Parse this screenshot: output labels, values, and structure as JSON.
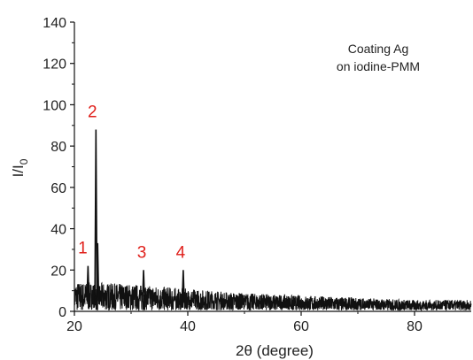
{
  "chart_data": {
    "type": "line",
    "xlabel": "2θ (degree)",
    "ylabel": "I/I",
    "ylabel_subscript": "0",
    "xlim": [
      20,
      90
    ],
    "ylim": [
      0,
      140
    ],
    "xticks": [
      20,
      40,
      60,
      80
    ],
    "yticks": [
      0,
      20,
      40,
      60,
      80,
      100,
      120,
      140
    ],
    "grid": false,
    "annotation_lines": [
      "Coating Ag",
      "on iodine-PMM"
    ],
    "peak_label_color": "#e0201b",
    "line_color": "#111111",
    "peaks": [
      {
        "label": "1",
        "x": 22.4,
        "y": 22
      },
      {
        "label": "2",
        "x": 23.8,
        "y": 88
      },
      {
        "label": "3",
        "x": 32.2,
        "y": 20
      },
      {
        "label": "4",
        "x": 39.2,
        "y": 20
      }
    ],
    "side_peaks": [
      {
        "x": 24.1,
        "y": 33
      }
    ],
    "noise_envelope": [
      {
        "x": 20,
        "y": 13
      },
      {
        "x": 30,
        "y": 12
      },
      {
        "x": 40,
        "y": 10
      },
      {
        "x": 50,
        "y": 8
      },
      {
        "x": 60,
        "y": 7
      },
      {
        "x": 70,
        "y": 6
      },
      {
        "x": 80,
        "y": 5
      },
      {
        "x": 90,
        "y": 5
      }
    ]
  }
}
